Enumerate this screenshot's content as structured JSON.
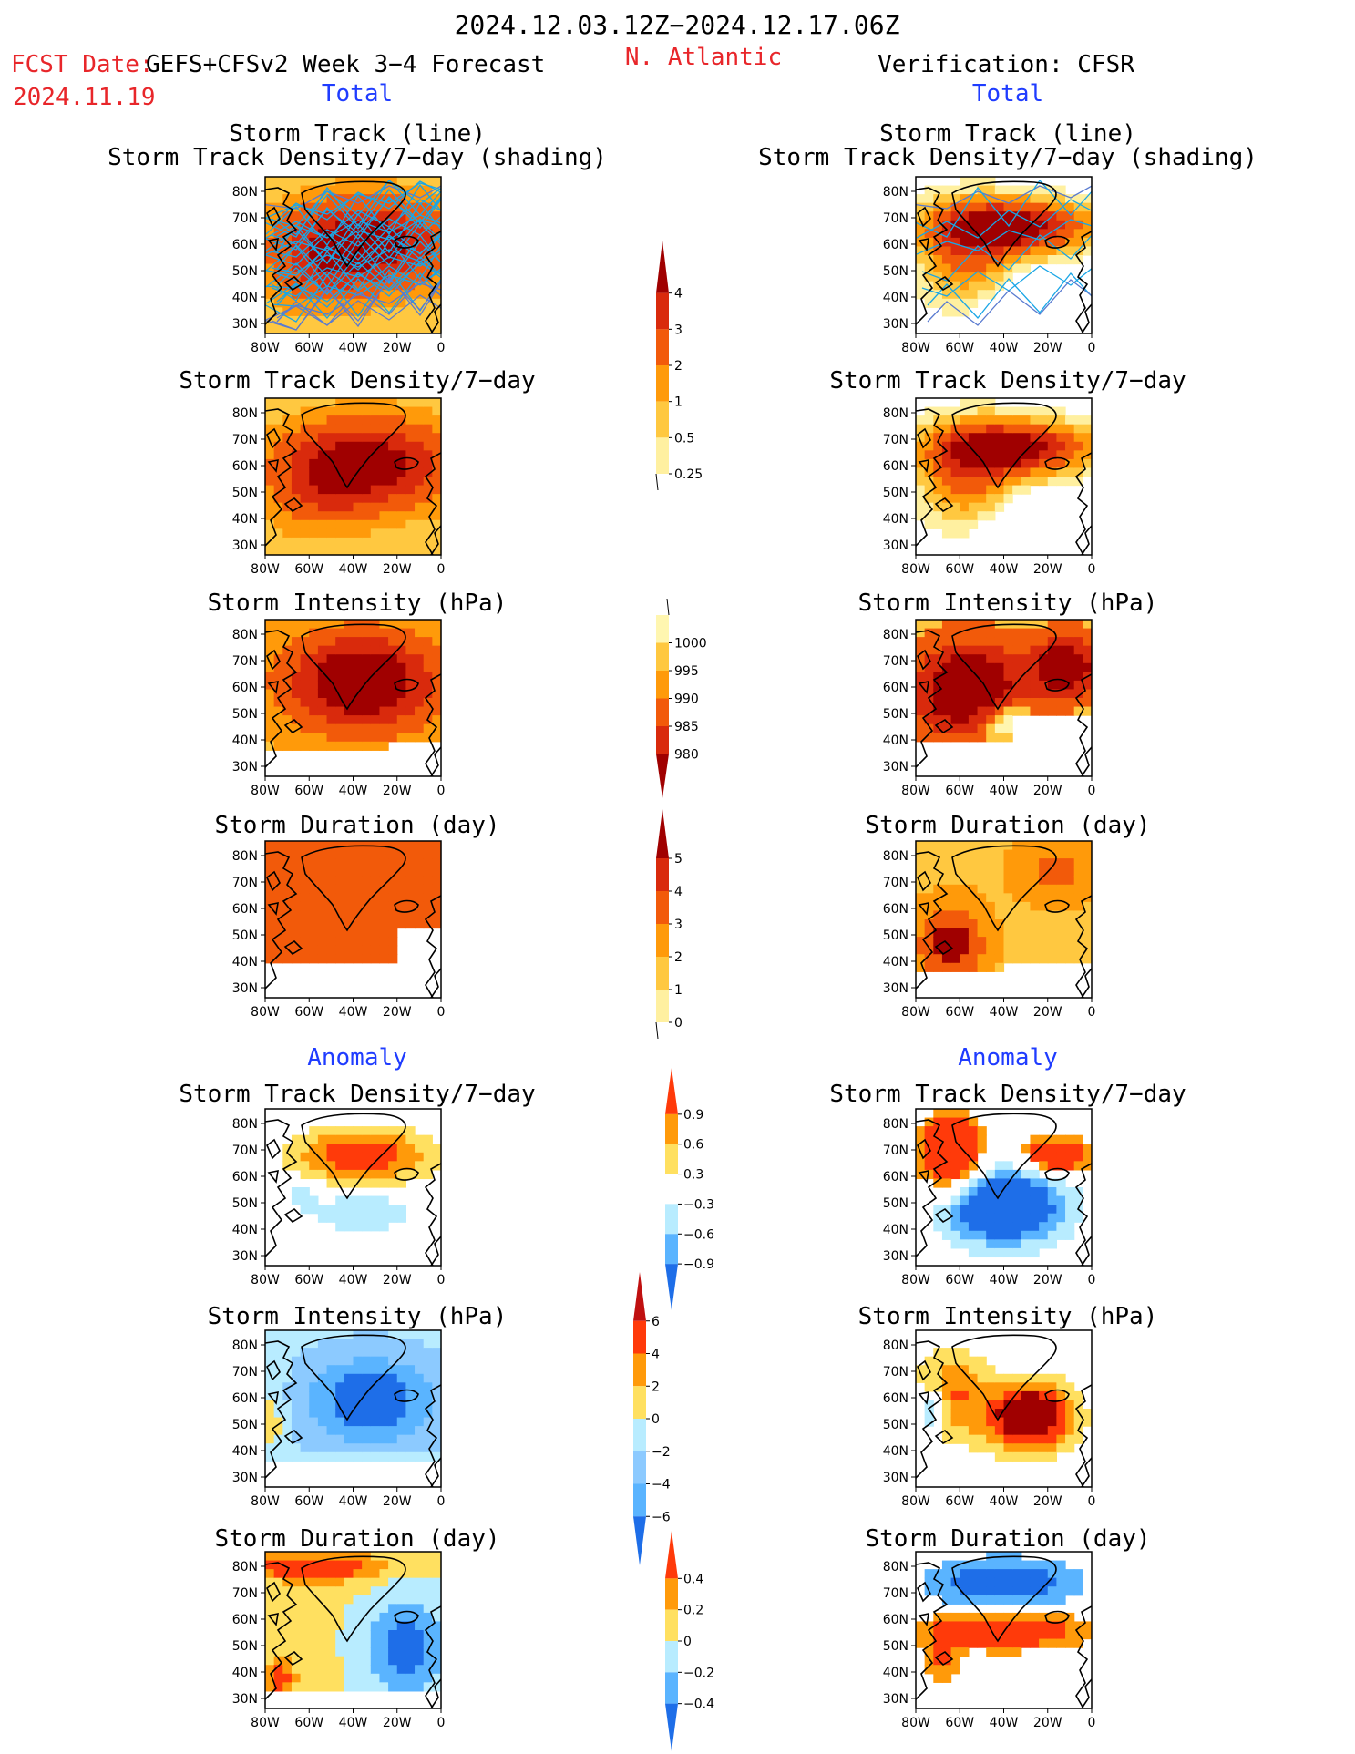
{
  "header": {
    "period": "2024.12.03.12Z−2024.12.17.06Z",
    "fcst_date_label": "FCST Date:",
    "model": "GEFS+CFSv2 Week 3−4 Forecast",
    "fcst_date": "2024.11.19",
    "region": "N. Atlantic",
    "verification": "Verification: CFSR",
    "total_left": "Total",
    "total_right": "Total",
    "anomaly_left": "Anomaly",
    "anomaly_right": "Anomaly"
  },
  "axes": {
    "lat_labels": [
      "80N",
      "70N",
      "60N",
      "50N",
      "40N",
      "30N"
    ],
    "lon_labels": [
      "80W",
      "60W",
      "40W",
      "20W",
      "0"
    ]
  },
  "panels": {
    "r0": {
      "title1": "Storm Track (line)",
      "title2": "Storm Track Density/7−day (shading)"
    },
    "r1": {
      "title1": "Storm Track Density/7−day"
    },
    "r2": {
      "title1": "Storm Intensity (hPa)"
    },
    "r3": {
      "title1": "Storm Duration (day)"
    },
    "r4": {
      "title1": "Storm Track Density/7−day"
    },
    "r5": {
      "title1": "Storm Intensity (hPa)"
    },
    "r6": {
      "title1": "Storm Duration (day)"
    }
  },
  "colorbars": {
    "density": {
      "labels": [
        "4",
        "3",
        "2",
        "1",
        "0.5",
        "0.25"
      ],
      "colors": [
        "#a00000",
        "#d92a0c",
        "#f25a0a",
        "#ff9a0a",
        "#ffc840",
        "#fff0a0"
      ]
    },
    "intensity": {
      "labels": [
        "1000",
        "995",
        "990",
        "985",
        "980"
      ],
      "colors": [
        "#fff6b0",
        "#ffc840",
        "#ff9a0a",
        "#f25a0a",
        "#d92a0c",
        "#a00000"
      ]
    },
    "duration": {
      "labels": [
        "5",
        "4",
        "3",
        "2",
        "1",
        "0"
      ],
      "colors": [
        "#a00000",
        "#d92a0c",
        "#f25a0a",
        "#ff9a0a",
        "#ffc840",
        "#fff0a0"
      ]
    },
    "density_anom": {
      "labels": [
        "0.9",
        "0.6",
        "0.3",
        "−0.3",
        "−0.6",
        "−0.9"
      ],
      "colors": [
        "#ff3a0a",
        "#ff9a0a",
        "#ffe060",
        "#ffffff",
        "#b8ecff",
        "#5ab4ff",
        "#1e6ee8"
      ]
    },
    "intensity_anom": {
      "labels": [
        "6",
        "4",
        "2",
        "0",
        "−2",
        "−4",
        "−6"
      ],
      "colors": [
        "#c01010",
        "#ff3a0a",
        "#ff9a0a",
        "#ffe060",
        "#b8ecff",
        "#8ccaff",
        "#5ab4ff",
        "#1e6ee8"
      ]
    },
    "duration_anom": {
      "labels": [
        "0.4",
        "0.2",
        "0",
        "−0.2",
        "−0.4"
      ],
      "colors": [
        "#ff3a0a",
        "#ff9a0a",
        "#ffe060",
        "#b8ecff",
        "#5ab4ff",
        "#1e6ee8"
      ]
    }
  }
}
